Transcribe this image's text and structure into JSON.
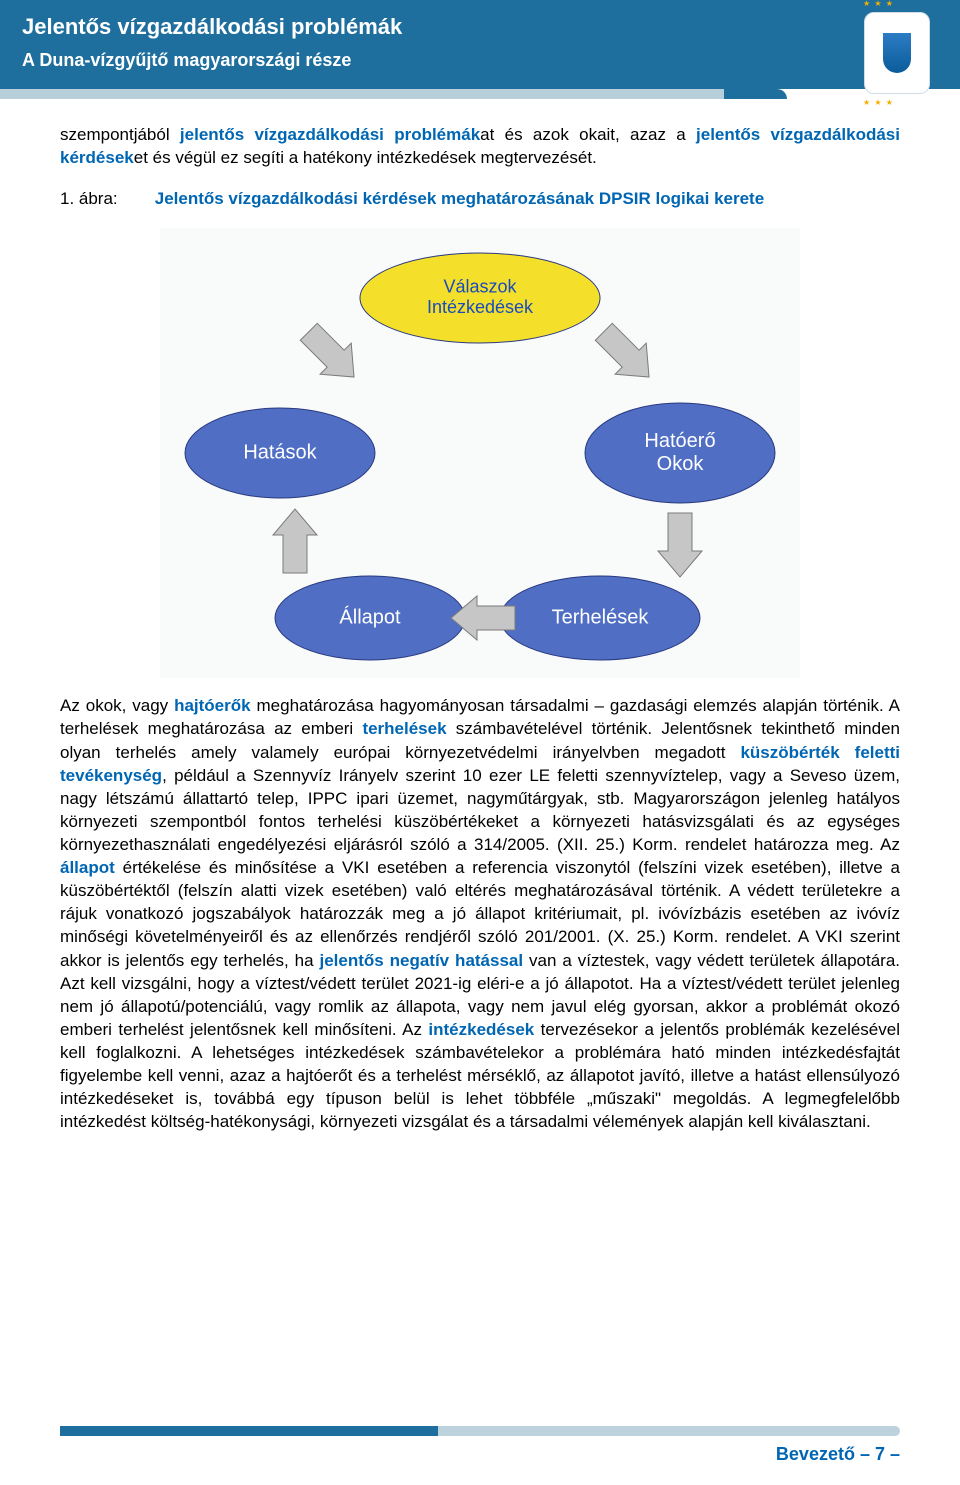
{
  "header": {
    "title": "Jelentős vízgazdálkodási problémák",
    "subtitle": "A Duna-vízgyűjtő magyarországi része"
  },
  "para1_a": "szempontjából ",
  "para1_b": "jelentős vízgazdálkodási problémák",
  "para1_c": "at és azok okait, azaz a ",
  "para1_d": "jelentős vízgazdálkodási kérdések",
  "para1_e": "et és végül ez segíti a hatékony intézkedések megtervezését.",
  "figure": {
    "label": "1. ábra:",
    "caption": "Jelentős vízgazdálkodási kérdések meghatározásának DPSIR logikai kerete"
  },
  "diagram": {
    "bg": "#f9fbfa",
    "node_fill": "#4f6ec4",
    "node_text": "#ffffff",
    "center_fill": "#f4e02a",
    "center_text": "#1a4bbd",
    "arrow_fill": "#c6c6c6",
    "arrow_stroke": "#7a7a7a",
    "nodes": {
      "valaszok_l1": "Válaszok",
      "valaszok_l2": "Intézkedések",
      "hatasok": "Hatások",
      "hatoero_l1": "Hatóerő",
      "hatoero_l2": "Okok",
      "allapot": "Állapot",
      "terhelesek": "Terhelések"
    },
    "font_size_node": 20,
    "font_size_center": 18
  },
  "para2_segments": [
    {
      "t": "Az okok, vagy ",
      "c": "n"
    },
    {
      "t": "hajtóerők",
      "c": "b"
    },
    {
      "t": " meghatározása hagyományosan társadalmi – gazdasági elemzés alapján történik. A terhelések meghatározása az emberi ",
      "c": "n"
    },
    {
      "t": "terhelések",
      "c": "b"
    },
    {
      "t": " számbavételével történik. Jelentősnek tekinthető minden olyan terhelés amely valamely európai környezetvédelmi irányelvben megadott ",
      "c": "n"
    },
    {
      "t": "küszöbérték feletti tevékenység",
      "c": "b"
    },
    {
      "t": ", például a Szennyvíz Irányelv szerint 10 ezer LE feletti szennyvíztelep, vagy a Seveso üzem, nagy létszámú állattartó telep, IPPC ipari üzemet, nagyműtárgyak, stb. Magyarországon jelenleg hatályos környezeti szempontból fontos terhelési küszöbértékeket a környezeti hatásvizsgálati és az egységes környezethasználati engedélyezési eljárásról szóló a 314/2005. (XII. 25.) Korm. rendelet határozza meg. Az ",
      "c": "n"
    },
    {
      "t": "állapot",
      "c": "b"
    },
    {
      "t": " értékelése és minősítése a VKI esetében a referencia viszonytól (felszíni vizek esetében), illetve a küszöbértéktől (felszín alatti vizek esetében) való eltérés meghatározásával történik. A védett területekre a rájuk vonatkozó jogszabályok határozzák meg a jó állapot kritériumait, pl. ivóvízbázis esetében az ivóvíz minőségi követelményeiről és az ellenőrzés rendjéről szóló 201/2001. (X. 25.) Korm. rendelet. A VKI szerint akkor is jelentős egy terhelés, ha ",
      "c": "n"
    },
    {
      "t": "jelentős negatív hatással",
      "c": "b"
    },
    {
      "t": " van a víztestek, vagy védett területek állapotára. Azt kell vizsgálni, hogy a víztest/védett terület 2021-ig eléri-e a jó állapotot. Ha a víztest/védett terület jelenleg nem jó állapotú/potenciálú, vagy romlik az állapota, vagy nem javul elég gyorsan, akkor a problémát okozó emberi terhelést jelentősnek kell minősíteni. Az ",
      "c": "n"
    },
    {
      "t": "intézkedések",
      "c": "b"
    },
    {
      "t": " tervezésekor a jelentős problémák kezelésével kell foglalkozni. A lehetséges intézkedések számbavételekor a problémára ható minden intézkedésfajtát figyelembe kell venni, azaz a hajtóerőt és a terhelést mérséklő, az állapotot javító, illetve a hatást ellensúlyozó intézkedéseket is, továbbá egy típuson belül is lehet többféle „műszaki\" megoldás. A legmegfelelőbb intézkedést költség-hatékonysági, környezeti vizsgálat és a társadalmi vélemények alapján kell kiválasztani.",
      "c": "n"
    }
  ],
  "footer": {
    "section": "Bevezető",
    "sep": " – ",
    "page": "7",
    "tail": " –"
  }
}
